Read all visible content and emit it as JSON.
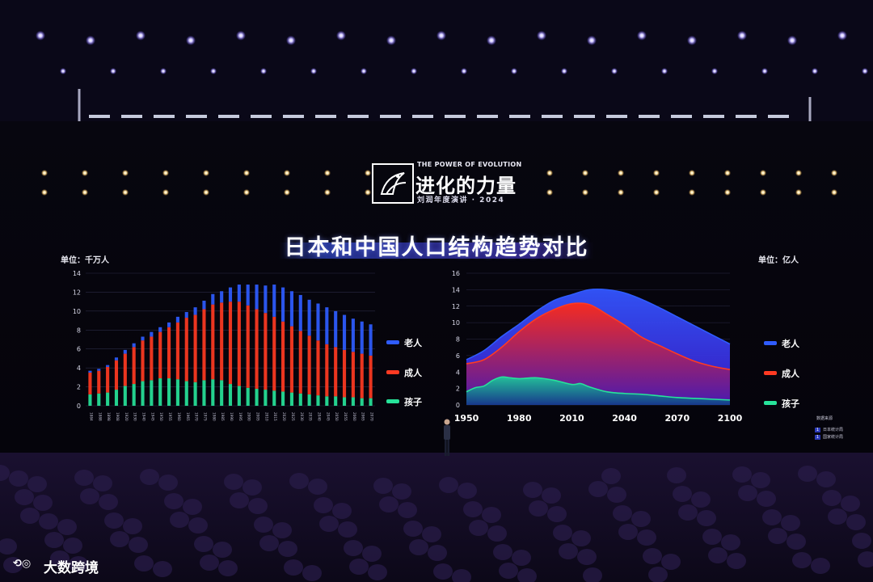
{
  "brand": {
    "tagline": "THE POWER OF EVOLUTION",
    "name": "进化的力量",
    "subtitle": "刘润年度演讲 · 2024"
  },
  "slide_title": "日本和中国人口结构趋势对比",
  "sources": {
    "title": "数据来源",
    "items": [
      {
        "num": "1",
        "label": "日本统计局"
      },
      {
        "num": "1",
        "label": "国家统计局"
      }
    ]
  },
  "watermark": "大数跨境",
  "colors": {
    "elderly": "#2f5cff",
    "adult": "#ff3a22",
    "children": "#27e39a",
    "background": "#05040c"
  },
  "chart_data": [
    {
      "type": "bar",
      "stacked": true,
      "title": "",
      "unit_label": "单位：千万人",
      "xlabel": "",
      "ylabel": "",
      "ylim": [
        0,
        14
      ],
      "yticks": [
        0,
        2,
        4,
        6,
        8,
        10,
        12,
        14
      ],
      "categories": [
        "1884",
        "1888",
        "1898",
        "1908",
        "1920",
        "1930",
        "1940",
        "1945",
        "1950",
        "1955",
        "1960",
        "1965",
        "1970",
        "1975",
        "1980",
        "1985",
        "1990",
        "1995",
        "2000",
        "2005",
        "2010",
        "2015",
        "2020",
        "2025",
        "2030",
        "2035",
        "2040",
        "2045",
        "2050",
        "2055",
        "2060",
        "2065",
        "2070"
      ],
      "grid": true,
      "legend": "right",
      "series": [
        {
          "name": "孩子",
          "color": "#27e39a",
          "values": [
            1.2,
            1.3,
            1.4,
            1.7,
            2.1,
            2.3,
            2.6,
            2.7,
            2.9,
            2.9,
            2.8,
            2.6,
            2.5,
            2.7,
            2.8,
            2.7,
            2.3,
            2.1,
            1.9,
            1.8,
            1.7,
            1.6,
            1.5,
            1.4,
            1.3,
            1.2,
            1.1,
            1.0,
            1.0,
            0.9,
            0.9,
            0.8,
            0.8
          ]
        },
        {
          "name": "成人",
          "color": "#ff3a22",
          "values": [
            2.3,
            2.4,
            2.7,
            3.1,
            3.4,
            3.9,
            4.3,
            4.6,
            4.9,
            5.4,
            6.0,
            6.7,
            7.1,
            7.5,
            7.9,
            8.2,
            8.7,
            8.9,
            8.7,
            8.4,
            8.1,
            7.8,
            7.4,
            7.0,
            6.6,
            6.2,
            5.8,
            5.5,
            5.2,
            5.0,
            4.8,
            4.7,
            4.5
          ]
        },
        {
          "name": "老人",
          "color": "#2f5cff",
          "values": [
            0.2,
            0.2,
            0.2,
            0.3,
            0.4,
            0.4,
            0.4,
            0.5,
            0.5,
            0.5,
            0.6,
            0.6,
            0.8,
            0.9,
            1.1,
            1.2,
            1.5,
            1.8,
            2.2,
            2.6,
            2.9,
            3.4,
            3.6,
            3.7,
            3.8,
            3.8,
            3.9,
            3.9,
            3.8,
            3.7,
            3.5,
            3.4,
            3.3
          ]
        }
      ]
    },
    {
      "type": "area",
      "stacked": false,
      "title": "",
      "unit_label": "单位：亿人",
      "xlabel": "",
      "ylabel": "",
      "xlim": [
        1950,
        2100
      ],
      "ylim": [
        0,
        16
      ],
      "xticks": [
        1950,
        1980,
        2010,
        2040,
        2070,
        2100
      ],
      "yticks": [
        0,
        2,
        4,
        6,
        8,
        10,
        12,
        14,
        16
      ],
      "grid": true,
      "legend": "right",
      "series": [
        {
          "name": "老人",
          "color": "#2f5cff",
          "x": [
            1950,
            1960,
            1970,
            1980,
            1990,
            2000,
            2010,
            2020,
            2030,
            2040,
            2050,
            2060,
            2070,
            2080,
            2090,
            2100
          ],
          "values": [
            5.5,
            6.6,
            8.3,
            9.8,
            11.4,
            12.7,
            13.4,
            14.0,
            14.0,
            13.6,
            12.8,
            11.8,
            10.7,
            9.6,
            8.5,
            7.4
          ]
        },
        {
          "name": "成人",
          "color": "#ff3a22",
          "x": [
            1950,
            1960,
            1970,
            1980,
            1990,
            2000,
            2010,
            2020,
            2030,
            2040,
            2050,
            2060,
            2070,
            2080,
            2090,
            2100
          ],
          "values": [
            5.0,
            5.5,
            7.0,
            8.9,
            10.5,
            11.6,
            12.3,
            12.2,
            11.0,
            9.7,
            8.2,
            7.2,
            6.2,
            5.3,
            4.7,
            4.3
          ]
        },
        {
          "name": "孩子",
          "color": "#27e39a",
          "x": [
            1950,
            1955,
            1960,
            1965,
            1970,
            1975,
            1980,
            1990,
            2000,
            2010,
            2015,
            2020,
            2030,
            2040,
            2050,
            2060,
            2070,
            2080,
            2090,
            2100
          ],
          "values": [
            1.6,
            2.1,
            2.3,
            3.0,
            3.4,
            3.3,
            3.2,
            3.3,
            3.0,
            2.5,
            2.6,
            2.2,
            1.6,
            1.4,
            1.3,
            1.1,
            0.9,
            0.8,
            0.7,
            0.6
          ]
        }
      ]
    }
  ]
}
